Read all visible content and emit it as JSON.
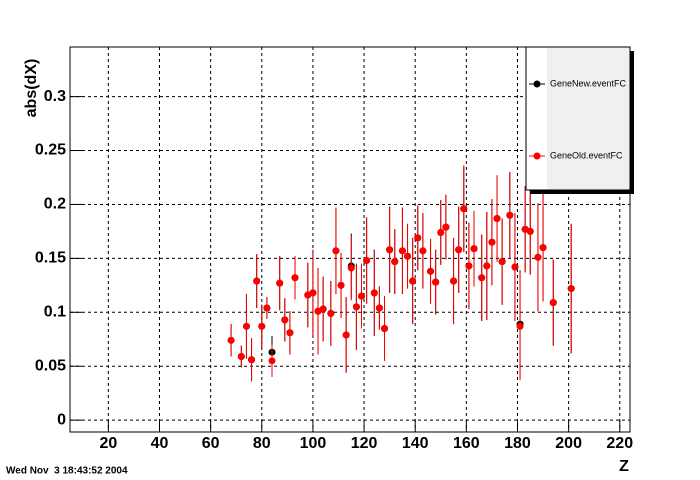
{
  "chart_data": {
    "type": "scatter",
    "y_label": "abs(dX)",
    "x_label": "Z",
    "timestamp": "Wed Nov  3 18:43:52 2004",
    "xlim": [
      5,
      224
    ],
    "ylim": [
      -0.011,
      0.346
    ],
    "xticks": [
      20,
      40,
      60,
      80,
      100,
      120,
      140,
      160,
      180,
      200,
      220
    ],
    "yticks": [
      0,
      0.05,
      0.1,
      0.15,
      0.2,
      0.25,
      0.3
    ],
    "grid": true,
    "legend": "top-right",
    "x": [
      68,
      72,
      74,
      76,
      78,
      80,
      82,
      84,
      87,
      89,
      91,
      93,
      98,
      100,
      102,
      104,
      107,
      109,
      111,
      113,
      115,
      117,
      119,
      121,
      124,
      126,
      128,
      130,
      132,
      135,
      137,
      139,
      141,
      143,
      146,
      148,
      150,
      152,
      155,
      157,
      159,
      161,
      163,
      166,
      168,
      170,
      172,
      174,
      177,
      179,
      181,
      183,
      185,
      188,
      190,
      194,
      201
    ],
    "series": [
      {
        "name": "GeneNew.eventFC",
        "color": "#000000",
        "values": [
          0.074,
          0.059,
          0.087,
          0.056,
          0.129,
          0.087,
          0.104,
          0.063,
          0.127,
          0.093,
          0.081,
          0.132,
          0.116,
          0.118,
          0.101,
          0.103,
          0.099,
          0.157,
          0.125,
          0.079,
          0.143,
          0.105,
          0.115,
          0.148,
          0.118,
          0.104,
          0.085,
          0.158,
          0.147,
          0.157,
          0.152,
          0.129,
          0.169,
          0.157,
          0.138,
          0.128,
          0.174,
          0.179,
          0.129,
          0.158,
          0.196,
          0.143,
          0.159,
          0.132,
          0.143,
          0.165,
          0.187,
          0.147,
          0.19,
          0.142,
          0.089,
          0.177,
          0.175,
          0.151,
          0.16,
          0.109,
          0.122
        ],
        "errors": [
          0.015,
          0.01,
          0.03,
          0.02,
          0.025,
          0.02,
          0.01,
          0.015,
          0.025,
          0.02,
          0.02,
          0.02,
          0.03,
          0.04,
          0.04,
          0.03,
          0.03,
          0.04,
          0.03,
          0.035,
          0.03,
          0.04,
          0.03,
          0.04,
          0.04,
          0.02,
          0.03,
          0.04,
          0.03,
          0.04,
          0.03,
          0.04,
          0.03,
          0.035,
          0.03,
          0.03,
          0.03,
          0.03,
          0.04,
          0.04,
          0.04,
          0.04,
          0.035,
          0.04,
          0.05,
          0.04,
          0.04,
          0.04,
          0.04,
          0.05,
          0.05,
          0.04,
          0.04,
          0.05,
          0.05,
          0.04,
          0.06
        ]
      },
      {
        "name": "GeneOld.eventFC",
        "color": "#ff0000",
        "values": [
          0.074,
          0.059,
          0.087,
          0.056,
          0.129,
          0.087,
          0.104,
          0.055,
          0.127,
          0.093,
          0.081,
          0.132,
          0.116,
          0.118,
          0.101,
          0.103,
          0.099,
          0.157,
          0.125,
          0.079,
          0.141,
          0.105,
          0.115,
          0.148,
          0.118,
          0.104,
          0.085,
          0.158,
          0.147,
          0.157,
          0.152,
          0.129,
          0.169,
          0.157,
          0.138,
          0.128,
          0.174,
          0.179,
          0.129,
          0.158,
          0.196,
          0.143,
          0.159,
          0.132,
          0.143,
          0.165,
          0.187,
          0.147,
          0.19,
          0.142,
          0.087,
          0.177,
          0.175,
          0.151,
          0.16,
          0.109,
          0.122
        ],
        "errors": [
          0.015,
          0.01,
          0.03,
          0.02,
          0.025,
          0.02,
          0.01,
          0.015,
          0.025,
          0.02,
          0.02,
          0.02,
          0.03,
          0.04,
          0.04,
          0.03,
          0.03,
          0.04,
          0.03,
          0.035,
          0.03,
          0.04,
          0.03,
          0.04,
          0.04,
          0.02,
          0.03,
          0.04,
          0.03,
          0.04,
          0.03,
          0.04,
          0.03,
          0.035,
          0.03,
          0.03,
          0.03,
          0.03,
          0.04,
          0.04,
          0.04,
          0.04,
          0.035,
          0.04,
          0.05,
          0.04,
          0.04,
          0.04,
          0.04,
          0.05,
          0.05,
          0.04,
          0.04,
          0.05,
          0.05,
          0.04,
          0.06
        ]
      }
    ]
  }
}
